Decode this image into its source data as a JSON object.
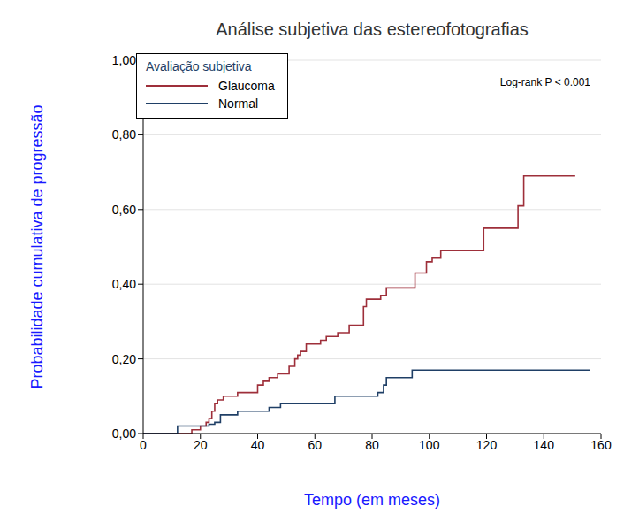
{
  "chart_data": {
    "type": "line",
    "title": "Análise subjetiva das estereofotografias",
    "x_label": "Tempo (em meses)",
    "y_label": "Probabilidade cumulativa de progressão",
    "legend_title": "Avaliação subjetiva",
    "annotation": "Log-rank P < 0.001",
    "legend": "upper left",
    "grid": true,
    "line_style": "step",
    "xlim": [
      0,
      160
    ],
    "xticks": [
      0,
      20,
      40,
      60,
      80,
      100,
      120,
      140,
      160
    ],
    "ylim": [
      0,
      1
    ],
    "yticks": [
      {
        "value": 0,
        "label": "0,00"
      },
      {
        "value": 0.2,
        "label": "0,20"
      },
      {
        "value": 0.4,
        "label": "0,40"
      },
      {
        "value": 0.6,
        "label": "0,60"
      },
      {
        "value": 0.8,
        "label": "0,80"
      },
      {
        "value": 1,
        "label": "1,00"
      }
    ],
    "series": [
      {
        "name": "Glaucoma",
        "color": "#9e2f3a",
        "x": [
          0,
          17,
          20,
          22,
          23,
          24,
          25,
          26,
          28,
          33,
          40,
          42,
          44,
          47,
          51,
          53,
          54,
          55,
          57,
          62,
          64,
          68,
          72,
          77,
          78,
          83,
          85,
          95,
          99,
          101,
          104,
          119,
          131,
          133,
          151
        ],
        "values": [
          0,
          0.01,
          0.02,
          0.03,
          0.04,
          0.06,
          0.08,
          0.09,
          0.1,
          0.11,
          0.13,
          0.14,
          0.15,
          0.16,
          0.18,
          0.2,
          0.21,
          0.22,
          0.24,
          0.25,
          0.26,
          0.27,
          0.29,
          0.34,
          0.36,
          0.37,
          0.39,
          0.43,
          0.46,
          0.47,
          0.49,
          0.55,
          0.61,
          0.69,
          0.69
        ]
      },
      {
        "name": "Normal",
        "color": "#1f3f66",
        "x": [
          0,
          12,
          23,
          25,
          27,
          33,
          44,
          48,
          67,
          82,
          84,
          85,
          94,
          156
        ],
        "values": [
          0,
          0.02,
          0.025,
          0.03,
          0.05,
          0.06,
          0.07,
          0.08,
          0.1,
          0.11,
          0.13,
          0.15,
          0.17,
          0.17
        ]
      }
    ]
  }
}
